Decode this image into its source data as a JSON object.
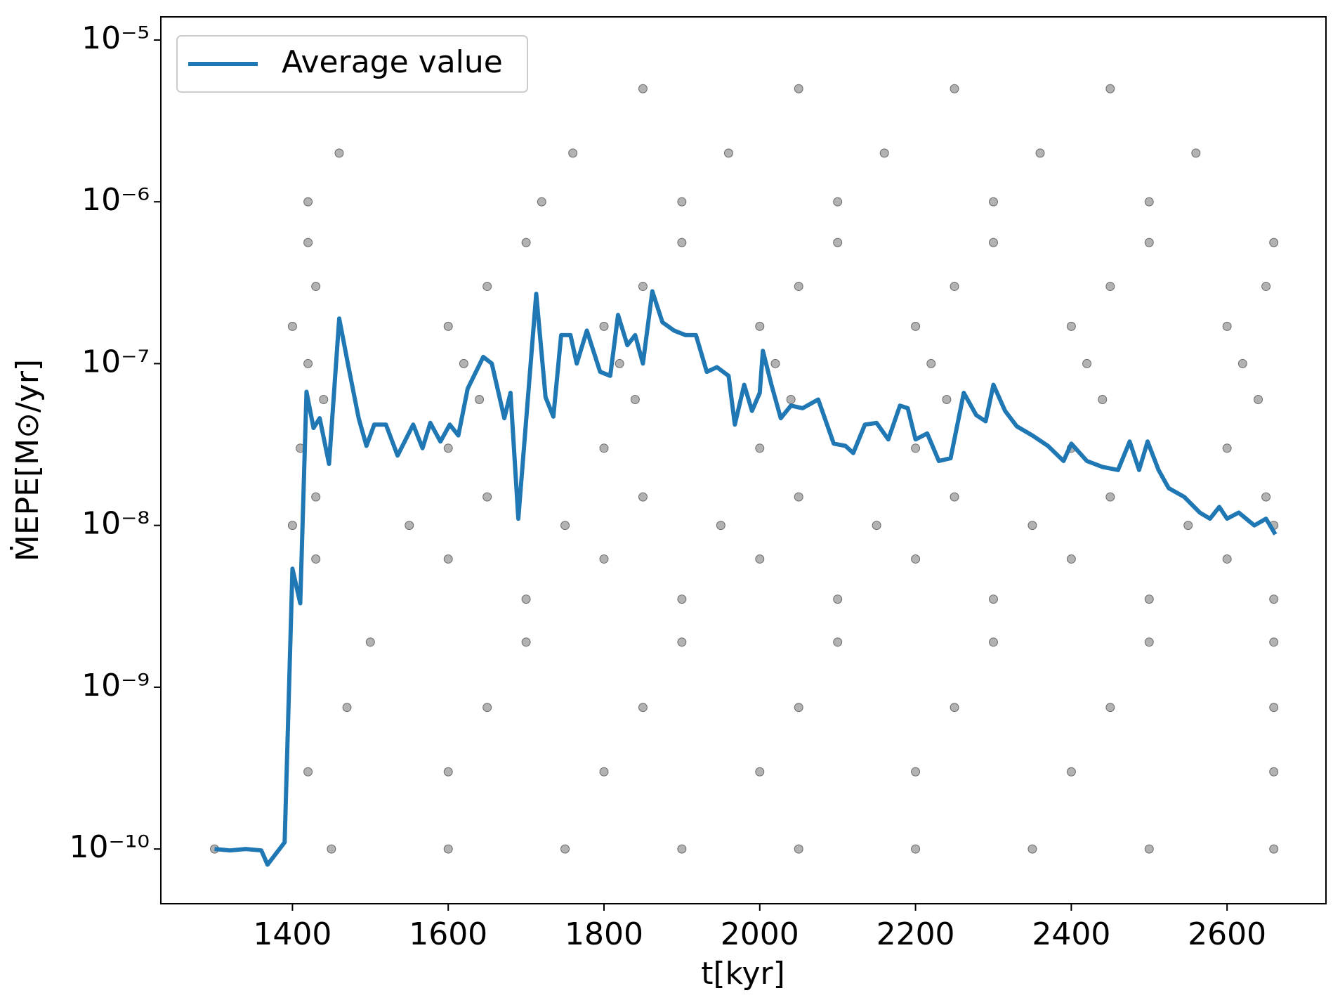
{
  "chart_data": {
    "type": "scatter",
    "xlabel": "t[kyr]",
    "ylabel": "ṀEPE[M⊙/yr]",
    "xlim": [
      1231,
      2727
    ],
    "ylim": [
      4.59e-11,
      1.39e-05
    ],
    "log_y": true,
    "xticks": [
      1400,
      1600,
      1800,
      2000,
      2200,
      2400,
      2600
    ],
    "yticks": [
      {
        "value": 1e-10,
        "label": "10⁻¹⁰"
      },
      {
        "value": 1e-09,
        "label": "10⁻⁹"
      },
      {
        "value": 1e-08,
        "label": "10⁻⁸"
      },
      {
        "value": 1e-07,
        "label": "10⁻⁷"
      },
      {
        "value": 1e-06,
        "label": "10⁻⁶"
      },
      {
        "value": 1e-05,
        "label": "10⁻⁵"
      }
    ],
    "legend_position": "upper left",
    "series": [
      {
        "type": "scatter",
        "color": "#000000",
        "x": [
          1300,
          1450,
          1600,
          1750,
          1900,
          2050,
          2200,
          2350,
          2500,
          2660,
          1420,
          1600,
          1800,
          2000,
          2200,
          2400,
          2660,
          1470,
          1650,
          1850,
          2050,
          2250,
          2450,
          2660,
          1500,
          1700,
          1900,
          2100,
          2300,
          2500,
          2660,
          1700,
          1900,
          2100,
          2300,
          2500,
          2660,
          1430,
          1600,
          1800,
          2000,
          2200,
          2400,
          2600,
          1400,
          1550,
          1750,
          1950,
          2150,
          2350,
          2550,
          2660,
          1430,
          1650,
          1850,
          2050,
          2250,
          2450,
          2650,
          1410,
          1600,
          1800,
          2000,
          2200,
          2400,
          2600,
          1440,
          1640,
          1840,
          2040,
          2240,
          2440,
          2640,
          1420,
          1620,
          1820,
          2020,
          2220,
          2420,
          2620,
          1400,
          1600,
          1800,
          2000,
          2200,
          2400,
          2600,
          1430,
          1650,
          1850,
          2050,
          2250,
          2450,
          2650,
          1420,
          1700,
          1900,
          2100,
          2300,
          2500,
          2660,
          1420,
          1720,
          1900,
          2100,
          2300,
          2500,
          1460,
          1760,
          1960,
          2160,
          2360,
          2560,
          1850,
          2050,
          2250,
          2450
        ],
        "values": [
          1e-10,
          1e-10,
          1e-10,
          1e-10,
          1e-10,
          1e-10,
          1e-10,
          1e-10,
          1e-10,
          1e-10,
          3e-10,
          3e-10,
          3e-10,
          3e-10,
          3e-10,
          3e-10,
          3e-10,
          7.5e-10,
          7.5e-10,
          7.5e-10,
          7.5e-10,
          7.5e-10,
          7.5e-10,
          7.5e-10,
          1.9e-09,
          1.9e-09,
          1.9e-09,
          1.9e-09,
          1.9e-09,
          1.9e-09,
          1.9e-09,
          3.5e-09,
          3.5e-09,
          3.5e-09,
          3.5e-09,
          3.5e-09,
          3.5e-09,
          6.2e-09,
          6.2e-09,
          6.2e-09,
          6.2e-09,
          6.2e-09,
          6.2e-09,
          6.2e-09,
          1e-08,
          1e-08,
          1e-08,
          1e-08,
          1e-08,
          1e-08,
          1e-08,
          1e-08,
          1.5e-08,
          1.5e-08,
          1.5e-08,
          1.5e-08,
          1.5e-08,
          1.5e-08,
          1.5e-08,
          3e-08,
          3e-08,
          3e-08,
          3e-08,
          3e-08,
          3e-08,
          3e-08,
          6e-08,
          6e-08,
          6e-08,
          6e-08,
          6e-08,
          6e-08,
          6e-08,
          1e-07,
          1e-07,
          1e-07,
          1e-07,
          1e-07,
          1e-07,
          1e-07,
          1.7e-07,
          1.7e-07,
          1.7e-07,
          1.7e-07,
          1.7e-07,
          1.7e-07,
          1.7e-07,
          3e-07,
          3e-07,
          3e-07,
          3e-07,
          3e-07,
          3e-07,
          3e-07,
          5.6e-07,
          5.6e-07,
          5.6e-07,
          5.6e-07,
          5.6e-07,
          5.6e-07,
          5.6e-07,
          1e-06,
          1e-06,
          1e-06,
          1e-06,
          1e-06,
          1e-06,
          2e-06,
          2e-06,
          2e-06,
          2e-06,
          2e-06,
          2e-06,
          5e-06,
          5e-06,
          5e-06,
          5e-06
        ]
      },
      {
        "type": "line",
        "name": "Average value",
        "color": "#1f77b4",
        "x": [
          1300,
          1320,
          1340,
          1360,
          1368,
          1390,
          1400,
          1410,
          1418,
          1427,
          1435,
          1447,
          1460,
          1472,
          1485,
          1495,
          1505,
          1520,
          1535,
          1555,
          1567,
          1577,
          1590,
          1602,
          1613,
          1625,
          1645,
          1656,
          1672,
          1680,
          1690,
          1713,
          1725,
          1735,
          1745,
          1757,
          1765,
          1778,
          1795,
          1808,
          1818,
          1830,
          1840,
          1850,
          1862,
          1875,
          1890,
          1905,
          1918,
          1932,
          1945,
          1960,
          1968,
          1980,
          1990,
          2000,
          2004,
          2015,
          2027,
          2040,
          2055,
          2075,
          2095,
          2110,
          2120,
          2135,
          2150,
          2165,
          2180,
          2190,
          2200,
          2215,
          2230,
          2245,
          2262,
          2278,
          2290,
          2300,
          2315,
          2330,
          2350,
          2370,
          2390,
          2400,
          2420,
          2440,
          2460,
          2475,
          2487,
          2498,
          2512,
          2525,
          2545,
          2565,
          2578,
          2590,
          2600,
          2615,
          2635,
          2650,
          2662
        ],
        "values": [
          1e-10,
          9.8e-11,
          1e-10,
          9.8e-11,
          8e-11,
          1.1e-10,
          5.4e-09,
          3.3e-09,
          6.7e-08,
          4e-08,
          4.6e-08,
          2.4e-08,
          1.9e-07,
          9.5e-08,
          4.6e-08,
          3.1e-08,
          4.2e-08,
          4.2e-08,
          2.7e-08,
          4.2e-08,
          3e-08,
          4.3e-08,
          3.3e-08,
          4.2e-08,
          3.6e-08,
          7e-08,
          1.1e-07,
          1e-07,
          4.6e-08,
          6.6e-08,
          1.1e-08,
          2.7e-07,
          6.2e-08,
          4.7e-08,
          1.5e-07,
          1.5e-07,
          1e-07,
          1.6e-07,
          8.9e-08,
          8.4e-08,
          2e-07,
          1.3e-07,
          1.5e-07,
          1e-07,
          2.8e-07,
          1.8e-07,
          1.6e-07,
          1.5e-07,
          1.5e-07,
          8.9e-08,
          9.5e-08,
          8.4e-08,
          4.2e-08,
          7.4e-08,
          5.1e-08,
          6.6e-08,
          1.2e-07,
          7.4e-08,
          4.6e-08,
          5.5e-08,
          5.3e-08,
          6e-08,
          3.2e-08,
          3.1e-08,
          2.8e-08,
          4.2e-08,
          4.3e-08,
          3.4e-08,
          5.5e-08,
          5.3e-08,
          3.4e-08,
          3.7e-08,
          2.5e-08,
          2.6e-08,
          6.6e-08,
          4.8e-08,
          4.4e-08,
          7.4e-08,
          5.1e-08,
          4.1e-08,
          3.6e-08,
          3.1e-08,
          2.5e-08,
          3.2e-08,
          2.5e-08,
          2.3e-08,
          2.2e-08,
          3.3e-08,
          2.2e-08,
          3.3e-08,
          2.2e-08,
          1.7e-08,
          1.5e-08,
          1.2e-08,
          1.1e-08,
          1.3e-08,
          1.1e-08,
          1.2e-08,
          1e-08,
          1.1e-08,
          8.8e-09
        ]
      }
    ]
  }
}
